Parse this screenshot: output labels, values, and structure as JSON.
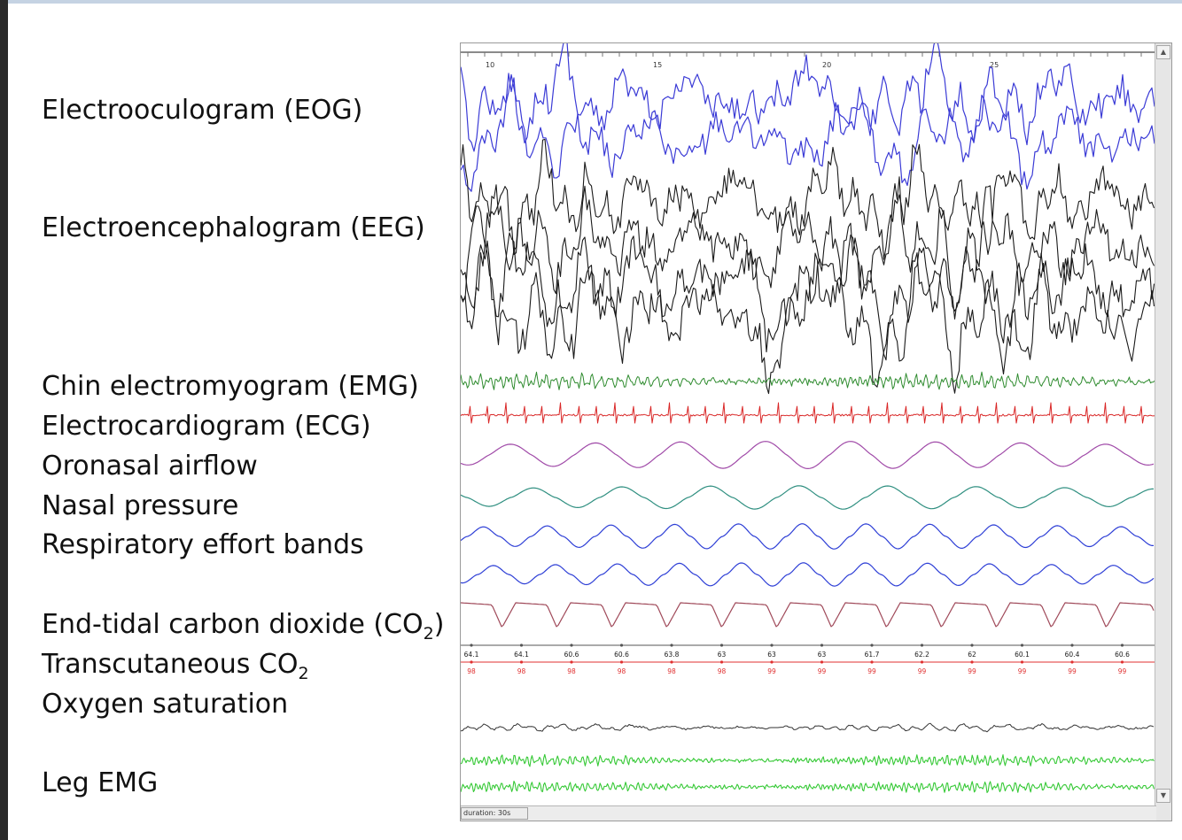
{
  "labels": {
    "eog": "Electrooculogram (EOG)",
    "eeg": "Electroencephalogram (EEG)",
    "chin_emg": "Chin electromyogram (EMG)",
    "ecg": "Electrocardiogram (ECG)",
    "airflow": "Oronasal airflow",
    "nasal_pressure": "Nasal pressure",
    "resp_effort": "Respiratory effort bands",
    "etco2_main": "End-tidal carbon dioxide (CO",
    "etco2_sub": "2",
    "etco2_close": ")",
    "tcco2_main": "Transcutaneous CO",
    "tcco2_sub": "2",
    "spo2": "Oxygen saturation",
    "leg_emg": "Leg EMG"
  },
  "viewer": {
    "time_ticks": [
      "10",
      "15",
      "20",
      "25"
    ],
    "duration": "duration: 30s",
    "co2_values": [
      "64.1",
      "64.1",
      "60.6",
      "60.6",
      "63.8",
      "63",
      "63",
      "63",
      "61.7",
      "62.2",
      "62",
      "60.1",
      "60.4",
      "60.6"
    ],
    "spo2_values": [
      "98",
      "98",
      "98",
      "98",
      "98",
      "98",
      "99",
      "99",
      "99",
      "99",
      "99",
      "99",
      "99",
      "99"
    ],
    "scroll_up_icon": "▲",
    "scroll_down_icon": "▼"
  },
  "colors": {
    "eog": "#3b3bd6",
    "eeg": "#1a1a1a",
    "chin_emg": "#2e8b2e",
    "ecg": "#d92626",
    "airflow": "#a04aa8",
    "nasal_pressure": "#2f8f80",
    "resp_effort": "#2e3fd6",
    "etco2": "#a04a5a",
    "co2_values": "#1a1a1a",
    "spo2_values": "#e03030",
    "tcco2": "#333333",
    "leg_emg": "#36c936"
  }
}
